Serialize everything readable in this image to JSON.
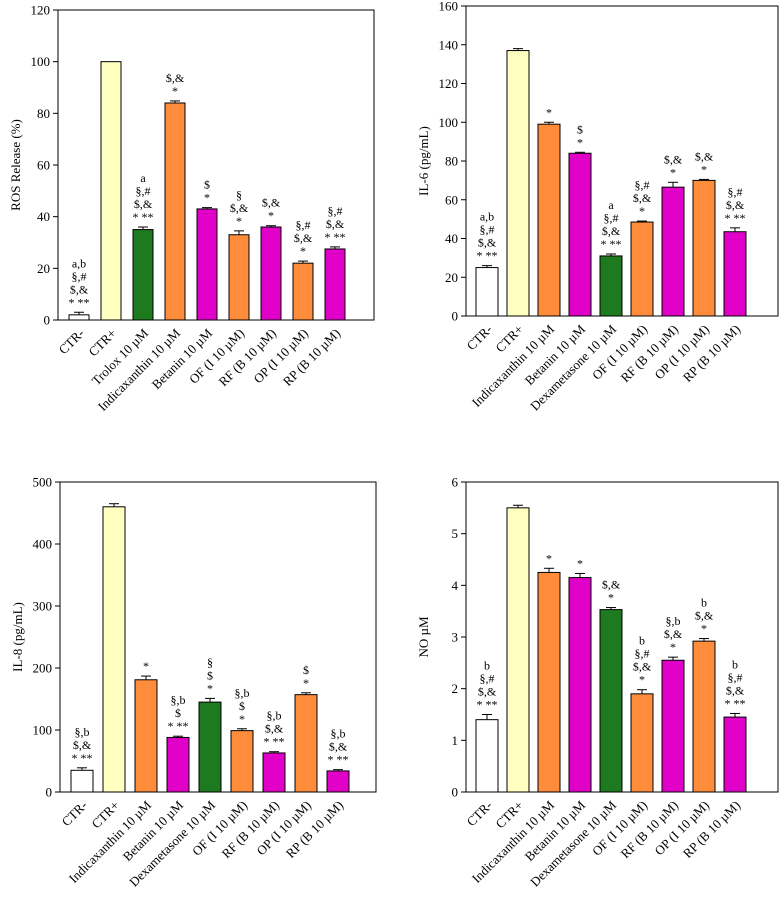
{
  "chart_data": [
    {
      "type": "bar",
      "ylabel": "ROS Release (%)",
      "ylim": [
        0,
        120
      ],
      "yticks": [
        0,
        20,
        40,
        60,
        80,
        100,
        120
      ],
      "categories": [
        "CTR-",
        "CTR+",
        "Trolox 10 µM",
        "Indicaxanthin 10 µM",
        "Betanin 10 µM",
        "OF (I 10 µM)",
        "RF (B 10 µM)",
        "OP (I 10 µM)",
        "RP (B 10 µM)"
      ],
      "values": [
        2,
        100,
        35,
        84,
        43,
        33,
        36,
        22,
        27.5
      ],
      "errors": [
        1,
        0,
        1,
        0.8,
        0.5,
        1.5,
        0.5,
        0.8,
        0.8
      ],
      "colors": [
        "#ffffff",
        "#ffffc0",
        "#1e7a1e",
        "#ff8c3a",
        "#e000c8",
        "#ff8c3a",
        "#e000c8",
        "#ff8c3a",
        "#e000c8"
      ],
      "annotations": [
        [
          "a,b",
          "§,#",
          "$,&",
          "* **"
        ],
        [],
        [
          "a",
          "§,#",
          "$,&",
          "* **"
        ],
        [
          "$,&",
          "*"
        ],
        [
          "$",
          "*"
        ],
        [
          "§",
          "$,&",
          "*"
        ],
        [
          "$,&",
          "*"
        ],
        [
          "§,#",
          "$,&",
          "*"
        ],
        [
          "§,#",
          "$,&",
          "* **"
        ]
      ]
    },
    {
      "type": "bar",
      "ylabel": "IL-6 (pg/mL)",
      "ylim": [
        0,
        160
      ],
      "yticks": [
        0,
        20,
        40,
        60,
        80,
        100,
        120,
        140,
        160
      ],
      "categories": [
        "CTR-",
        "CTR+",
        "Indicaxanthin 10 µM",
        "Betanin 10 µM",
        "Dexametasone 10 µM",
        "OF (I 10 µM)",
        "RF (B 10 µM)",
        "OP (I 10 µM)",
        "RP (B 10 µM)"
      ],
      "values": [
        25,
        137,
        99,
        84,
        31,
        48.5,
        66.5,
        70,
        43.5
      ],
      "errors": [
        1,
        1,
        1,
        0.5,
        1,
        0.5,
        2.5,
        0.5,
        2
      ],
      "colors": [
        "#ffffff",
        "#ffffc0",
        "#ff8c3a",
        "#e000c8",
        "#1e7a1e",
        "#ff8c3a",
        "#e000c8",
        "#ff8c3a",
        "#e000c8"
      ],
      "annotations": [
        [
          "a,b",
          "§,#",
          "$,&",
          "* **"
        ],
        [],
        [
          "*"
        ],
        [
          "$",
          "*"
        ],
        [
          "a",
          "§,#",
          "$,&",
          "* **"
        ],
        [
          "§,#",
          "$,&",
          "*"
        ],
        [
          "$,&",
          "*"
        ],
        [
          "$,&",
          "*"
        ],
        [
          "§,#",
          "$,&",
          "* **"
        ]
      ]
    },
    {
      "type": "bar",
      "ylabel": "IL-8 (pg/mL)",
      "ylim": [
        0,
        500
      ],
      "yticks": [
        0,
        100,
        200,
        300,
        400,
        500
      ],
      "categories": [
        "CTR-",
        "CTR+",
        "Indicaxanthin 10 µM",
        "Betanin 10 µM",
        "Dexametasone 10 µM",
        "OF (I 10 µM)",
        "RF (B 10 µM)",
        "OP (I 10 µM)",
        "RP (B 10 µM)"
      ],
      "values": [
        35,
        460,
        181,
        88,
        145,
        99,
        63,
        157,
        34
      ],
      "errors": [
        4,
        5,
        6,
        2,
        6,
        3,
        2,
        3,
        2
      ],
      "colors": [
        "#ffffff",
        "#ffffc0",
        "#ff8c3a",
        "#e000c8",
        "#1e7a1e",
        "#ff8c3a",
        "#e000c8",
        "#ff8c3a",
        "#e000c8"
      ],
      "annotations": [
        [
          "§,b",
          "$,&",
          "* **"
        ],
        [],
        [
          "*"
        ],
        [
          "§,b",
          "$",
          "* **"
        ],
        [
          "§",
          "$",
          "*"
        ],
        [
          "§,b",
          "$",
          "*"
        ],
        [
          "§,b",
          "$,&",
          "* **"
        ],
        [
          "$",
          "*"
        ],
        [
          "§,b",
          "$,&",
          "* **"
        ]
      ]
    },
    {
      "type": "bar",
      "ylabel": "NO µM",
      "ylim": [
        0,
        6
      ],
      "yticks": [
        0,
        1,
        2,
        3,
        4,
        5,
        6
      ],
      "categories": [
        "CTR-",
        "CTR+",
        "Indicaxanthin 10 µM",
        "Betanin 10 µM",
        "Dexametasone 10 µM",
        "OF (I 10 µM)",
        "RF (B 10 µM)",
        "OP (I 10 µM)",
        "RP (B 10 µM)"
      ],
      "values": [
        1.4,
        5.5,
        4.25,
        4.15,
        3.53,
        1.9,
        2.55,
        2.92,
        1.45
      ],
      "errors": [
        0.1,
        0.05,
        0.08,
        0.08,
        0.04,
        0.08,
        0.06,
        0.05,
        0.07
      ],
      "colors": [
        "#ffffff",
        "#ffffc0",
        "#ff8c3a",
        "#e000c8",
        "#1e7a1e",
        "#ff8c3a",
        "#e000c8",
        "#ff8c3a",
        "#e000c8"
      ],
      "annotations": [
        [
          "b",
          "§,#",
          "$,&",
          "* **"
        ],
        [],
        [
          "*"
        ],
        [
          "*"
        ],
        [
          "$,&",
          "*"
        ],
        [
          "b",
          "§,#",
          "$,&",
          "*"
        ],
        [
          "§,b",
          "$,&",
          "*"
        ],
        [
          "b",
          "$,&",
          "*"
        ],
        [
          "b",
          "§,#",
          "$,&",
          "* **"
        ]
      ]
    }
  ]
}
